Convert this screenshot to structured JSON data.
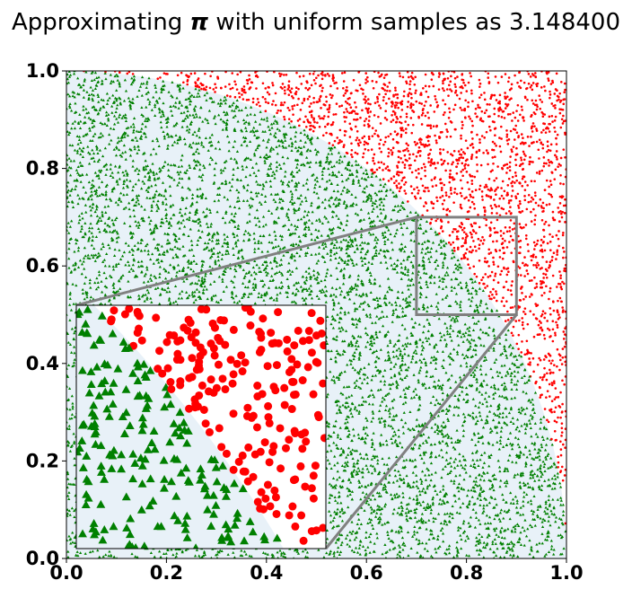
{
  "chart_data": {
    "type": "scatter",
    "title": {
      "prefix": "Approximating ",
      "symbol": "π",
      "suffix": " with uniform samples as 3.148400"
    },
    "estimate": 3.1484,
    "xlabel": "",
    "ylabel": "",
    "xlim": [
      0,
      1
    ],
    "ylim": [
      0,
      1
    ],
    "xticks": [
      "0.0",
      "0.2",
      "0.4",
      "0.6",
      "0.8",
      "1.0"
    ],
    "yticks": [
      "0.0",
      "0.2",
      "0.4",
      "0.6",
      "0.8",
      "1.0"
    ],
    "grid": false,
    "legend": "none",
    "region": {
      "shape": "quarter-circle",
      "radius": 1,
      "fill_color": "#e8f1f8"
    },
    "series": [
      {
        "marker": "triangle",
        "color": "#008000",
        "rule": "x^2 + y^2 <= 1"
      },
      {
        "marker": "circle",
        "color": "#ff0000",
        "rule": "x^2 + y^2 > 1"
      }
    ],
    "samples": {
      "count": 10000,
      "distribution": "uniform"
    },
    "inset": {
      "xlim": [
        0.7,
        0.9
      ],
      "ylim": [
        0.5,
        0.7
      ],
      "placement": "lower-left",
      "connector_color": "#808080"
    }
  }
}
